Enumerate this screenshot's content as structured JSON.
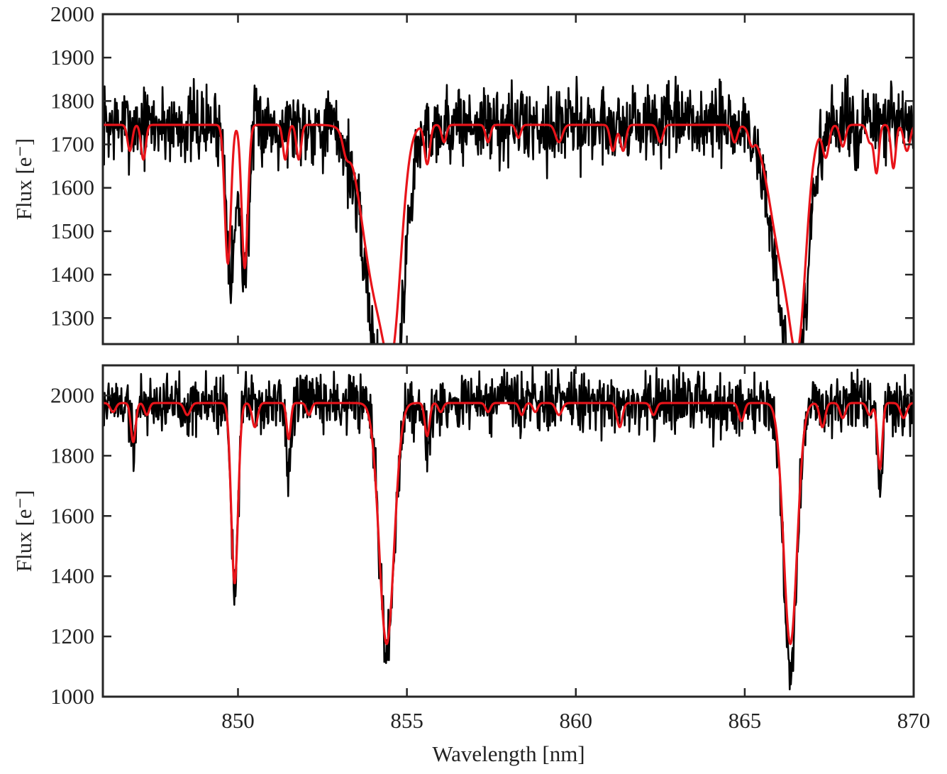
{
  "figure": {
    "xlabel": "Wavelength [nm]"
  },
  "chart_data": [
    {
      "type": "line",
      "panel": "top",
      "title": "",
      "xlabel": "",
      "ylabel": "Flux [e⁻]",
      "xlim": [
        846,
        870
      ],
      "ylim": [
        1240,
        2000
      ],
      "xticks": [
        850,
        855,
        860,
        865,
        870
      ],
      "yticks": [
        1300,
        1400,
        1500,
        1600,
        1700,
        1800,
        1900,
        2000
      ],
      "x_tick_labels_shown": false,
      "continuum": 1745,
      "noise_amplitude": 45,
      "noise_seed": 7,
      "series": [
        {
          "role": "observed",
          "color": "#000000",
          "noisy": true,
          "absorption_lines": [
            {
              "center": 849.8,
              "depth": 330,
              "width": 0.13
            },
            {
              "center": 850.2,
              "depth": 340,
              "width": 0.12
            },
            {
              "center": 854.2,
              "depth": 480,
              "width": 0.5
            },
            {
              "center": 854.6,
              "depth": 350,
              "width": 0.3
            },
            {
              "center": 866.2,
              "depth": 380,
              "width": 0.45
            },
            {
              "center": 866.6,
              "depth": 340,
              "width": 0.3
            }
          ]
        },
        {
          "role": "model",
          "color": "#e8141a",
          "noisy": false,
          "absorption_lines": [
            {
              "center": 846.8,
              "depth": 60,
              "width": 0.07
            },
            {
              "center": 847.2,
              "depth": 80,
              "width": 0.07
            },
            {
              "center": 849.7,
              "depth": 320,
              "width": 0.09
            },
            {
              "center": 850.2,
              "depth": 330,
              "width": 0.09
            },
            {
              "center": 851.4,
              "depth": 80,
              "width": 0.07
            },
            {
              "center": 851.8,
              "depth": 80,
              "width": 0.07
            },
            {
              "center": 853.2,
              "depth": 40,
              "width": 0.1
            },
            {
              "center": 854.1,
              "depth": 380,
              "width": 0.42
            },
            {
              "center": 854.6,
              "depth": 330,
              "width": 0.25
            },
            {
              "center": 855.6,
              "depth": 90,
              "width": 0.08
            },
            {
              "center": 856.1,
              "depth": 40,
              "width": 0.07
            },
            {
              "center": 857.4,
              "depth": 40,
              "width": 0.07
            },
            {
              "center": 858.3,
              "depth": 30,
              "width": 0.07
            },
            {
              "center": 859.5,
              "depth": 40,
              "width": 0.1
            },
            {
              "center": 861.1,
              "depth": 60,
              "width": 0.08
            },
            {
              "center": 861.4,
              "depth": 60,
              "width": 0.08
            },
            {
              "center": 862.5,
              "depth": 40,
              "width": 0.08
            },
            {
              "center": 864.7,
              "depth": 40,
              "width": 0.08
            },
            {
              "center": 865.2,
              "depth": 30,
              "width": 0.08
            },
            {
              "center": 866.2,
              "depth": 330,
              "width": 0.42
            },
            {
              "center": 866.6,
              "depth": 300,
              "width": 0.22
            },
            {
              "center": 867.4,
              "depth": 70,
              "width": 0.09
            },
            {
              "center": 867.9,
              "depth": 50,
              "width": 0.08
            },
            {
              "center": 868.7,
              "depth": 40,
              "width": 0.08
            },
            {
              "center": 868.9,
              "depth": 110,
              "width": 0.07
            },
            {
              "center": 869.4,
              "depth": 100,
              "width": 0.07
            },
            {
              "center": 869.8,
              "depth": 60,
              "width": 0.09
            }
          ]
        }
      ]
    },
    {
      "type": "line",
      "panel": "bottom",
      "title": "",
      "xlabel": "Wavelength [nm]",
      "ylabel": "Flux [e⁻]",
      "xlim": [
        846,
        870
      ],
      "ylim": [
        1000,
        2100
      ],
      "xticks": [
        850,
        855,
        860,
        865,
        870
      ],
      "yticks": [
        1000,
        1200,
        1400,
        1600,
        1800,
        2000
      ],
      "x_tick_labels_shown": true,
      "continuum": 1975,
      "noise_amplitude": 50,
      "noise_seed": 19,
      "series": [
        {
          "role": "observed",
          "color": "#000000",
          "noisy": true,
          "absorption_lines": [
            {
              "center": 846.9,
              "depth": 130,
              "width": 0.08
            },
            {
              "center": 849.9,
              "depth": 600,
              "width": 0.1
            },
            {
              "center": 851.5,
              "depth": 230,
              "width": 0.07
            },
            {
              "center": 854.4,
              "depth": 830,
              "width": 0.22
            },
            {
              "center": 855.6,
              "depth": 120,
              "width": 0.07
            },
            {
              "center": 866.35,
              "depth": 880,
              "width": 0.2
            },
            {
              "center": 869.0,
              "depth": 300,
              "width": 0.07
            }
          ]
        },
        {
          "role": "model",
          "color": "#e8141a",
          "noisy": false,
          "absorption_lines": [
            {
              "center": 846.3,
              "depth": 30,
              "width": 0.08
            },
            {
              "center": 846.9,
              "depth": 130,
              "width": 0.07
            },
            {
              "center": 847.3,
              "depth": 40,
              "width": 0.07
            },
            {
              "center": 848.5,
              "depth": 40,
              "width": 0.09
            },
            {
              "center": 849.9,
              "depth": 600,
              "width": 0.1
            },
            {
              "center": 850.5,
              "depth": 80,
              "width": 0.08
            },
            {
              "center": 851.5,
              "depth": 120,
              "width": 0.06
            },
            {
              "center": 852.1,
              "depth": 40,
              "width": 0.07
            },
            {
              "center": 854.4,
              "depth": 800,
              "width": 0.22
            },
            {
              "center": 855.6,
              "depth": 110,
              "width": 0.07
            },
            {
              "center": 856.0,
              "depth": 30,
              "width": 0.07
            },
            {
              "center": 857.4,
              "depth": 30,
              "width": 0.07
            },
            {
              "center": 858.4,
              "depth": 40,
              "width": 0.07
            },
            {
              "center": 858.8,
              "depth": 30,
              "width": 0.07
            },
            {
              "center": 859.5,
              "depth": 40,
              "width": 0.09
            },
            {
              "center": 861.3,
              "depth": 80,
              "width": 0.08
            },
            {
              "center": 862.3,
              "depth": 40,
              "width": 0.08
            },
            {
              "center": 864.9,
              "depth": 60,
              "width": 0.08
            },
            {
              "center": 866.35,
              "depth": 800,
              "width": 0.2
            },
            {
              "center": 867.3,
              "depth": 80,
              "width": 0.08
            },
            {
              "center": 867.9,
              "depth": 50,
              "width": 0.08
            },
            {
              "center": 868.7,
              "depth": 40,
              "width": 0.08
            },
            {
              "center": 869.0,
              "depth": 220,
              "width": 0.07
            },
            {
              "center": 869.7,
              "depth": 50,
              "width": 0.09
            }
          ]
        }
      ]
    }
  ]
}
